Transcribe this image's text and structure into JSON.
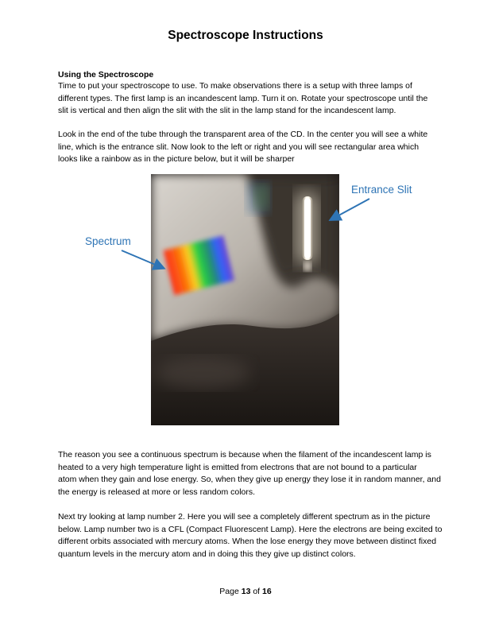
{
  "title": "Spectroscope Instructions",
  "section_heading": "Using the Spectroscope",
  "paragraph1": [
    "Time to put your spectroscope to use.  To make observations there is a setup with three lamps of",
    "different types.  The first lamp is an incandescent lamp.  Turn it on.  Rotate your spectroscope until the",
    "slit is vertical and then align the slit with the slit in the lamp stand for the incandescent lamp."
  ],
  "paragraph2": [
    "Look in the end of the tube through the transparent area of the CD.  In the center you will see a white",
    "line, which is the entrance slit.  Now look to the left or right and you will see rectangular area which",
    "looks like a rainbow as in the picture below, but it will be sharper"
  ],
  "figure": {
    "label_spectrum": "Spectrum",
    "label_entrance_slit": "Entrance Slit",
    "label_color": "#2e74b5"
  },
  "paragraph3": [
    "The reason you see a continuous spectrum is because when the filament of the incandescent lamp is",
    "heated to a very high temperature light is emitted from electrons that are not bound to a particular",
    "atom when they gain and lose energy.  So, when they give up energy they lose it in random manner, and",
    "the energy is released at more or less random colors."
  ],
  "paragraph4": [
    "Next try looking at lamp number 2.  Here you will see a completely different spectrum as in the picture",
    "below.  Lamp number two is a CFL (Compact Fluorescent Lamp).  Here the electrons are being excited to",
    "different orbits associated with mercury atoms.  When the lose energy they move between distinct fixed",
    "quantum levels in the mercury atom and in doing this they give up distinct colors."
  ],
  "footer": {
    "page_word": "Page",
    "page_number": "13",
    "of_word": "of",
    "total_pages": "16"
  }
}
